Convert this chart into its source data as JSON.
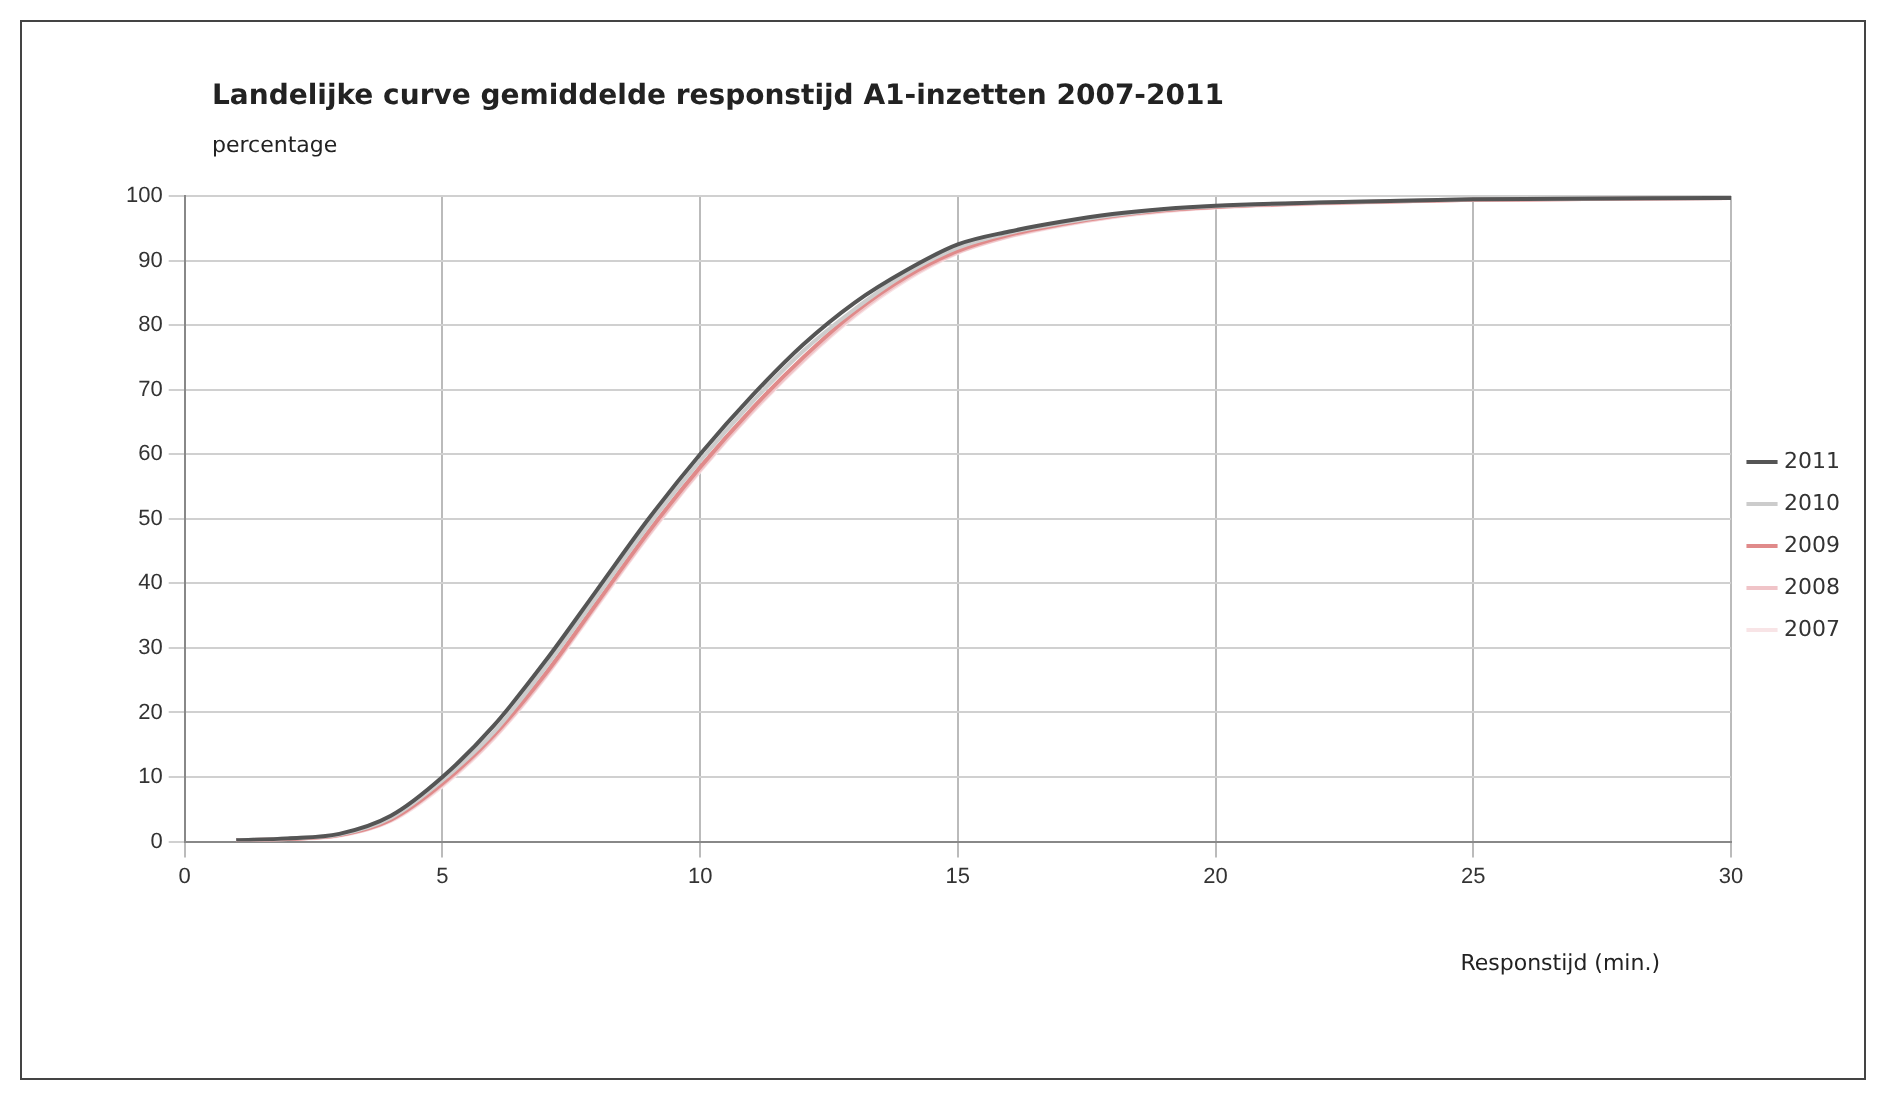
{
  "chart_data": {
    "type": "line",
    "title": "Landelijke curve gemiddelde responstijd A1-inzetten 2007-2011",
    "ylabel": "percentage",
    "xlabel": "Responstijd (min.)",
    "x": [
      1,
      2,
      3,
      4,
      5,
      6,
      7,
      8,
      9,
      10,
      11,
      12,
      13,
      14,
      15,
      16,
      17,
      18,
      19,
      20,
      22,
      25,
      30
    ],
    "series": [
      {
        "name": "2011",
        "color": "#555555",
        "values": [
          0.2,
          0.5,
          1.2,
          4,
          10,
          18,
          28,
          39,
          50,
          60,
          69,
          77,
          83.5,
          88.5,
          92.5,
          94.5,
          96,
          97.2,
          98,
          98.5,
          99,
          99.5,
          99.7
        ]
      },
      {
        "name": "2010",
        "color": "#cccccc",
        "values": [
          0.2,
          0.5,
          1.1,
          3.7,
          9.5,
          17,
          27,
          38,
          49,
          59,
          68,
          76,
          82.5,
          88,
          92,
          94.3,
          95.8,
          97,
          97.9,
          98.4,
          99,
          99.5,
          99.7
        ]
      },
      {
        "name": "2009",
        "color": "#e08a8a",
        "values": [
          0.2,
          0.4,
          1,
          3.4,
          9,
          16.5,
          26,
          37,
          48,
          58,
          67,
          75,
          82,
          87.5,
          91.5,
          94,
          95.6,
          96.9,
          97.8,
          98.3,
          98.9,
          99.4,
          99.7
        ]
      },
      {
        "name": "2008",
        "color": "#f0c4c8",
        "values": [
          0.2,
          0.4,
          1,
          3.3,
          8.8,
          16.2,
          25.7,
          36.7,
          47.6,
          57.6,
          66.6,
          74.6,
          81.6,
          87.2,
          91.3,
          93.8,
          95.5,
          96.8,
          97.7,
          98.3,
          98.9,
          99.4,
          99.7
        ]
      },
      {
        "name": "2007",
        "color": "#f8e4e6",
        "values": [
          0.2,
          0.4,
          0.9,
          3.2,
          8.6,
          16,
          25.5,
          36.5,
          47.4,
          57.4,
          66.4,
          74.4,
          81.4,
          87,
          91.2,
          93.7,
          95.4,
          96.7,
          97.6,
          98.2,
          98.8,
          99.4,
          99.7
        ]
      }
    ],
    "xlim": [
      0,
      30
    ],
    "xticks": [
      0,
      5,
      10,
      15,
      20,
      25,
      30
    ],
    "ylim": [
      0,
      100
    ],
    "yticks": [
      0,
      10,
      20,
      30,
      40,
      50,
      60,
      70,
      80,
      90,
      100
    ],
    "grid": true,
    "legend": "right",
    "marker": "none",
    "line_style": "solid"
  }
}
